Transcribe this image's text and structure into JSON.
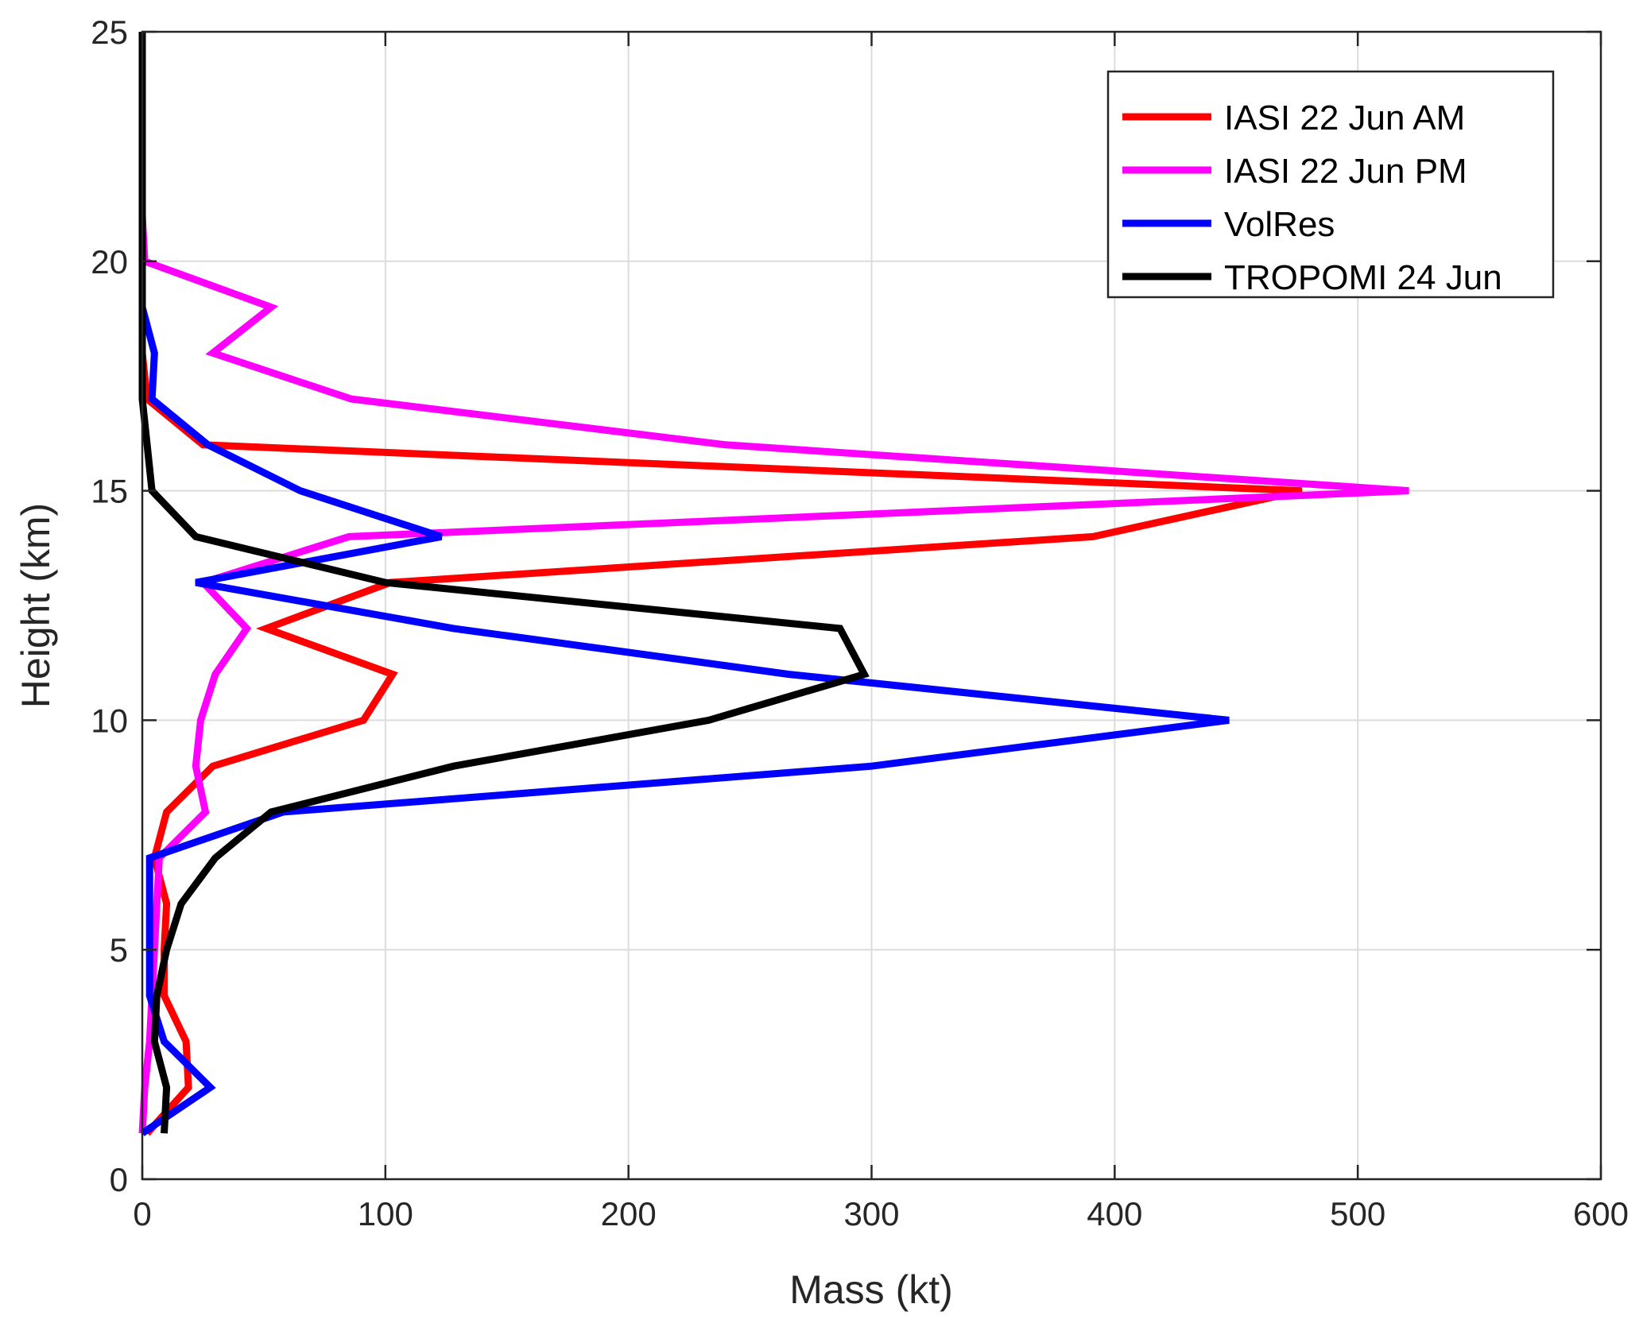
{
  "chart_data": {
    "type": "line",
    "title": "",
    "xlabel": "Mass (kt)",
    "ylabel": "Height (km)",
    "xlim": [
      0,
      600
    ],
    "ylim": [
      0,
      25
    ],
    "xticks": [
      0,
      100,
      200,
      300,
      400,
      500,
      600
    ],
    "yticks": [
      0,
      5,
      10,
      15,
      20,
      25
    ],
    "grid": true,
    "legend_position": "top-right",
    "series": [
      {
        "name": "IASI 22 Jun AM",
        "color": "#ff0000",
        "x": [
          2,
          19,
          18,
          9,
          9,
          10,
          5,
          10,
          29,
          91,
          103,
          51,
          102,
          391,
          477,
          25,
          2,
          0,
          0,
          0,
          0
        ],
        "y": [
          1,
          2,
          3,
          4,
          5,
          6,
          7,
          8,
          9,
          10,
          11,
          12,
          13,
          14,
          15,
          16,
          17,
          18,
          19,
          20,
          21
        ]
      },
      {
        "name": "IASI 22 Jun PM",
        "color": "#ff00ff",
        "x": [
          0,
          1,
          3,
          4,
          5,
          6,
          7,
          26,
          22,
          24,
          30,
          43,
          25,
          85,
          521,
          240,
          86,
          29,
          53,
          1,
          0
        ],
        "y": [
          1,
          2,
          3,
          4,
          5,
          6,
          7,
          8,
          9,
          10,
          11,
          12,
          13,
          14,
          15,
          16,
          17,
          18,
          19,
          20,
          21
        ]
      },
      {
        "name": "VolRes",
        "color": "#0000ff",
        "x": [
          0,
          28,
          9,
          3,
          3,
          3,
          3,
          58,
          300,
          447,
          266,
          128,
          22,
          123,
          65,
          27,
          4,
          5,
          0,
          0
        ],
        "y": [
          1,
          2,
          3,
          4,
          5,
          6,
          7,
          8,
          9,
          10,
          11,
          12,
          13,
          14,
          15,
          16,
          17,
          18,
          19,
          20
        ]
      },
      {
        "name": "TROPOMI 24 Jun",
        "color": "#000000",
        "x": [
          9,
          10,
          5,
          6,
          10,
          16,
          30,
          53,
          128,
          233,
          297,
          287,
          100,
          22,
          4,
          2,
          0,
          0,
          0,
          0,
          0,
          0,
          0,
          0,
          0
        ],
        "y": [
          1,
          2,
          3,
          4,
          5,
          6,
          7,
          8,
          9,
          10,
          11,
          12,
          13,
          14,
          15,
          16,
          17,
          18,
          19,
          20,
          21,
          22,
          23,
          24,
          25
        ]
      }
    ]
  }
}
